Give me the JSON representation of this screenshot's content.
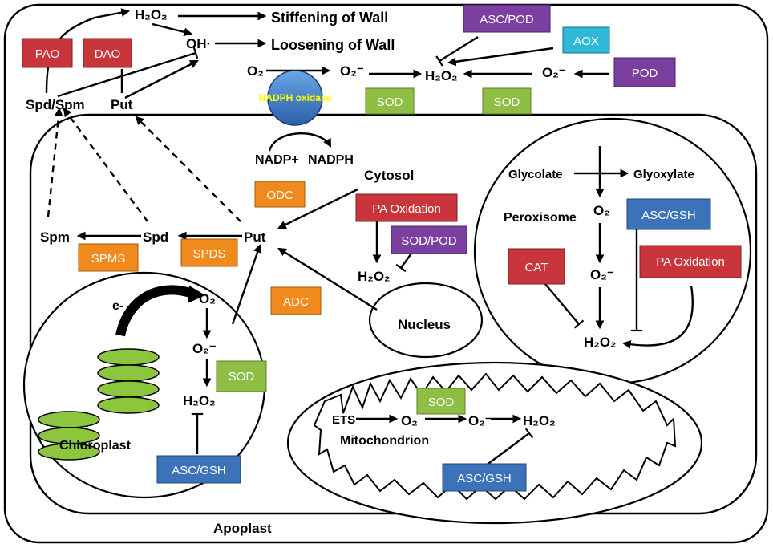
{
  "colors": {
    "red": "#c8353a",
    "purple": "#7b3fa0",
    "green": "#8fbe45",
    "orange": "#f08a1c",
    "blue": "#3c72b8",
    "cyan": "#2fb7d8",
    "thylakoid": "#8cc63f"
  },
  "labels": {
    "h2o2_top": "H₂O₂",
    "oh": "OH·",
    "stiffening": "Stiffening of Wall",
    "loosening": "Loosening of Wall",
    "spd_spm": "Spd/Spm",
    "put_top": "Put",
    "o2_apo": "O₂",
    "o2m_apo": "O₂⁻",
    "h2o2_apo": "H₂O₂",
    "o2m_right": "O₂⁻",
    "nadph_oxidase": "NADPH oxidase",
    "nadp": "NADP+",
    "nadph": "NADPH",
    "cytosol": "Cytosol",
    "put_center": "Put",
    "spd": "Spd",
    "spm": "Spm",
    "h2o2_cyt": "H₂O₂",
    "nucleus": "Nucleus",
    "glycolate": "Glycolate",
    "glyoxylate": "Glyoxylate",
    "peroxisome": "Peroxisome",
    "o2_per": "O₂",
    "o2m_per": "O₂⁻",
    "h2o2_per": "H₂O₂",
    "e_minus": "e-",
    "o2_chl": "O₂",
    "o2m_chl": "O₂⁻",
    "h2o2_chl": "H₂O₂",
    "chloroplast": "Chloroplast",
    "ets": "ETS",
    "o2_mit": "O₂",
    "o2m_mit": "O₂⁻",
    "h2o2_mit": "H₂O₂",
    "mitochondrion": "Mitochondrion",
    "apoplast": "Apoplast"
  },
  "boxes": {
    "pao": "PAO",
    "dao": "DAO",
    "asc_pod": "ASC/POD",
    "aox": "AOX",
    "pod": "POD",
    "sod_apo1": "SOD",
    "sod_apo2": "SOD",
    "odc": "ODC",
    "pa_ox_cyt": "PA Oxidation",
    "sod_pod": "SOD/POD",
    "spms": "SPMS",
    "spds": "SPDS",
    "adc": "ADC",
    "asc_gsh_per": "ASC/GSH",
    "cat": "CAT",
    "pa_ox_per": "PA Oxidation",
    "sod_chl": "SOD",
    "asc_gsh_chl": "ASC/GSH",
    "sod_mit": "SOD",
    "asc_gsh_mit": "ASC/GSH"
  }
}
